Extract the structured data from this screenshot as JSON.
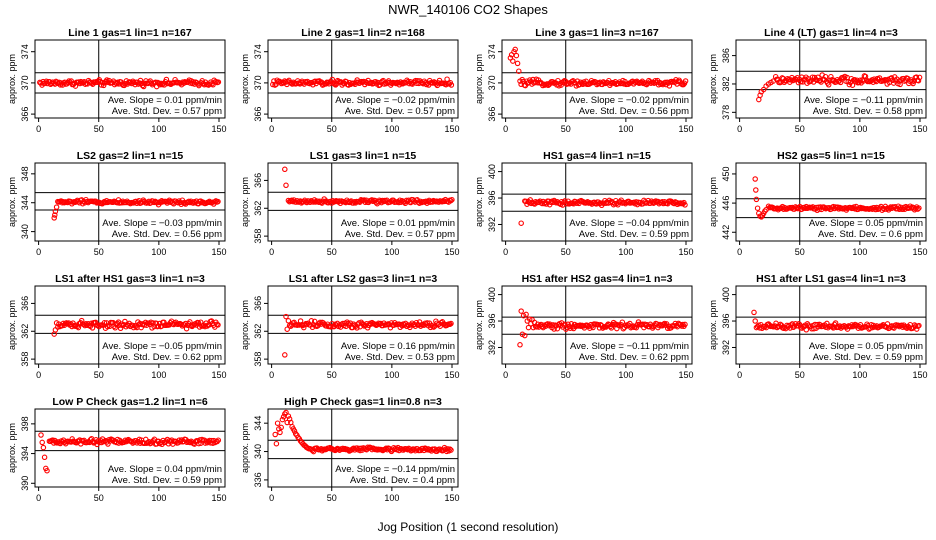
{
  "title": "NWR_140106  CO2 Shapes",
  "xlabel": "Jog Position (1 second resolution)",
  "chart_data": [
    {
      "type": "scatter",
      "title": "Line 1 gas=1 lin=1 n=167",
      "ylabel": "approx. ppm",
      "xlim": [
        -3,
        155
      ],
      "ylim": [
        365.5,
        375.5
      ],
      "yticks": [
        366,
        370,
        374
      ],
      "xticks": [
        0,
        50,
        100,
        150
      ],
      "ref_lines": [
        368.7,
        371.3
      ],
      "vline": 50,
      "level": 370.0,
      "noise": 0.25,
      "x_start": 1,
      "x_end": 150,
      "early": [],
      "slope_text": "Ave. Slope = 0.01  ppm/min",
      "std_text": "Ave. Std. Dev. = 0.57  ppm"
    },
    {
      "type": "scatter",
      "title": "Line 2 gas=1 lin=2 n=168",
      "ylabel": "approx. ppm",
      "xlim": [
        -3,
        155
      ],
      "ylim": [
        365.5,
        375.5
      ],
      "yticks": [
        366,
        370,
        374
      ],
      "xticks": [
        0,
        50,
        100,
        150
      ],
      "ref_lines": [
        368.7,
        371.3
      ],
      "vline": 50,
      "level": 370.0,
      "noise": 0.25,
      "x_start": 1,
      "x_end": 150,
      "early": [],
      "slope_text": "Ave. Slope = −0.02  ppm/min",
      "std_text": "Ave. Std. Dev. = 0.57  ppm"
    },
    {
      "type": "scatter",
      "title": "Line 3 gas=1 lin=3 n=167",
      "ylabel": "approx. ppm",
      "xlim": [
        -3,
        155
      ],
      "ylim": [
        365.5,
        375.5
      ],
      "yticks": [
        366,
        370,
        374
      ],
      "xticks": [
        0,
        50,
        100,
        150
      ],
      "ref_lines": [
        368.7,
        371.3
      ],
      "vline": 50,
      "level": 370.0,
      "noise": 0.25,
      "x_start": 12,
      "x_end": 150,
      "early": [
        [
          4,
          373.2
        ],
        [
          5,
          373.6
        ],
        [
          6,
          372.8
        ],
        [
          7,
          374.0
        ],
        [
          8,
          374.3
        ],
        [
          9,
          373.5
        ],
        [
          10,
          372.5
        ],
        [
          11,
          371.5
        ]
      ],
      "slope_text": "Ave. Slope = −0.02  ppm/min",
      "std_text": "Ave. Std. Dev. = 0.56  ppm"
    },
    {
      "type": "scatter",
      "title": "Line 4 (LT) gas=1 lin=4 n=3",
      "ylabel": "approx. ppm",
      "xlim": [
        -3,
        155
      ],
      "ylim": [
        377.2,
        388.2
      ],
      "yticks": [
        378,
        382,
        386
      ],
      "xticks": [
        0,
        50,
        100,
        150
      ],
      "ref_lines": [
        381.2,
        383.8
      ],
      "vline": 50,
      "level": 382.5,
      "noise": 0.4,
      "x_start": 30,
      "x_end": 150,
      "early": [
        [
          16,
          379.8
        ],
        [
          17,
          380.4
        ],
        [
          18,
          380.9
        ],
        [
          20,
          381.2
        ],
        [
          22,
          381.7
        ],
        [
          24,
          382.0
        ],
        [
          26,
          382.2
        ],
        [
          28,
          382.4
        ]
      ],
      "slope_text": "Ave. Slope = −0.11  ppm/min",
      "std_text": "Ave. Std. Dev. = 0.58  ppm"
    },
    {
      "type": "scatter",
      "title": "LS2 gas=2 lin=1 n=15",
      "ylabel": "approx. ppm",
      "xlim": [
        -3,
        155
      ],
      "ylim": [
        338.7,
        349.5
      ],
      "yticks": [
        340,
        344,
        348
      ],
      "xticks": [
        0,
        50,
        100,
        150
      ],
      "ref_lines": [
        343.0,
        345.4
      ],
      "vline": 50,
      "level": 344.1,
      "noise": 0.2,
      "x_start": 16,
      "x_end": 150,
      "early": [
        [
          13,
          341.9
        ],
        [
          13.5,
          342.3
        ],
        [
          14,
          342.8
        ],
        [
          15,
          343.4
        ]
      ],
      "slope_text": "Ave. Slope = −0.03  ppm/min",
      "std_text": "Ave. Std. Dev. = 0.56  ppm"
    },
    {
      "type": "scatter",
      "title": "LS1 gas=3 lin=1 n=15",
      "ylabel": "approx. ppm",
      "xlim": [
        -3,
        155
      ],
      "ylim": [
        357.3,
        368.5
      ],
      "yticks": [
        358,
        362,
        366
      ],
      "xticks": [
        0,
        50,
        100,
        150
      ],
      "ref_lines": [
        361.7,
        364.3
      ],
      "vline": 50,
      "level": 363.0,
      "noise": 0.2,
      "x_start": 14,
      "x_end": 150,
      "early": [
        [
          11,
          367.6
        ],
        [
          12,
          365.3
        ]
      ],
      "slope_text": "Ave. Slope = 0.01  ppm/min",
      "std_text": "Ave. Std. Dev. = 0.57  ppm"
    },
    {
      "type": "scatter",
      "title": "HS1 gas=4 lin=1 n=15",
      "ylabel": "approx. ppm",
      "xlim": [
        -3,
        155
      ],
      "ylim": [
        389.5,
        401.3
      ],
      "yticks": [
        392,
        396,
        400
      ],
      "xticks": [
        0,
        50,
        100,
        150
      ],
      "ref_lines": [
        394.0,
        396.6
      ],
      "vline": 50,
      "level": 395.3,
      "noise": 0.25,
      "x_start": 16,
      "x_end": 150,
      "early": [
        [
          13,
          392.2
        ]
      ],
      "slope_text": "Ave. Slope = −0.04  ppm/min",
      "std_text": "Ave. Std. Dev. = 0.59  ppm"
    },
    {
      "type": "scatter",
      "title": "HS2 gas=5 lin=1 n=15",
      "ylabel": "approx. ppm",
      "xlim": [
        -3,
        155
      ],
      "ylim": [
        440.8,
        451.5
      ],
      "yticks": [
        442,
        446,
        450
      ],
      "xticks": [
        0,
        50,
        100,
        150
      ],
      "ref_lines": [
        444.0,
        446.6
      ],
      "vline": 50,
      "level": 445.3,
      "noise": 0.2,
      "x_start": 24,
      "x_end": 150,
      "early": [
        [
          13,
          449.3
        ],
        [
          13.5,
          447.8
        ],
        [
          14,
          446.5
        ],
        [
          15,
          445.3
        ],
        [
          16,
          444.6
        ],
        [
          17,
          444.2
        ],
        [
          18,
          444.1
        ],
        [
          19,
          444.3
        ],
        [
          20,
          444.6
        ],
        [
          21,
          444.9
        ],
        [
          22,
          445.1
        ]
      ],
      "slope_text": "Ave. Slope = 0.05  ppm/min",
      "std_text": "Ave. Std. Dev. = 0.6  ppm"
    },
    {
      "type": "scatter",
      "title": "LS1 after HS1 gas=3 lin=1 n=3",
      "ylabel": "approx. ppm",
      "xlim": [
        -3,
        155
      ],
      "ylim": [
        357.3,
        368.5
      ],
      "yticks": [
        358,
        362,
        366
      ],
      "xticks": [
        0,
        50,
        100,
        150
      ],
      "ref_lines": [
        361.7,
        364.3
      ],
      "vline": 50,
      "level": 363.0,
      "noise": 0.35,
      "x_start": 16,
      "x_end": 150,
      "early": [
        [
          13,
          361.6
        ],
        [
          14,
          362.2
        ],
        [
          15,
          363.2
        ]
      ],
      "slope_text": "Ave. Slope = −0.05  ppm/min",
      "std_text": "Ave. Std. Dev. = 0.62  ppm"
    },
    {
      "type": "scatter",
      "title": "LS1 after LS2 gas=3 lin=1 n=3",
      "ylabel": "approx. ppm",
      "xlim": [
        -3,
        155
      ],
      "ylim": [
        357.3,
        368.5
      ],
      "yticks": [
        358,
        362,
        366
      ],
      "xticks": [
        0,
        50,
        100,
        150
      ],
      "ref_lines": [
        361.7,
        364.3
      ],
      "vline": 50,
      "level": 363.0,
      "noise": 0.35,
      "x_start": 16,
      "x_end": 150,
      "early": [
        [
          11,
          358.6
        ],
        [
          12,
          364.1
        ],
        [
          13,
          362.3
        ],
        [
          14,
          363.5
        ],
        [
          15,
          362.8
        ]
      ],
      "slope_text": "Ave. Slope = 0.16  ppm/min",
      "std_text": "Ave. Std. Dev. = 0.53  ppm"
    },
    {
      "type": "scatter",
      "title": "HS1 after HS2 gas=4 lin=1 n=3",
      "ylabel": "approx. ppm",
      "xlim": [
        -3,
        155
      ],
      "ylim": [
        389.5,
        401.3
      ],
      "yticks": [
        392,
        396,
        400
      ],
      "xticks": [
        0,
        50,
        100,
        150
      ],
      "ref_lines": [
        394.0,
        396.6
      ],
      "vline": 50,
      "level": 395.3,
      "noise": 0.35,
      "x_start": 25,
      "x_end": 150,
      "early": [
        [
          12,
          392.4
        ],
        [
          13,
          397.5
        ],
        [
          14,
          394.0
        ],
        [
          15,
          396.8
        ],
        [
          16,
          393.8
        ],
        [
          17,
          397.0
        ],
        [
          18,
          396.0
        ],
        [
          19,
          395.0
        ],
        [
          20,
          396.3
        ],
        [
          21,
          395.6
        ],
        [
          22,
          396.2
        ],
        [
          23,
          395.0
        ],
        [
          24,
          395.8
        ]
      ],
      "slope_text": "Ave. Slope = −0.11  ppm/min",
      "std_text": "Ave. Std. Dev. = 0.62  ppm"
    },
    {
      "type": "scatter",
      "title": "HS1 after LS1 gas=4 lin=1 n=3",
      "ylabel": "approx. ppm",
      "xlim": [
        -3,
        155
      ],
      "ylim": [
        389.5,
        401.3
      ],
      "yticks": [
        392,
        396,
        400
      ],
      "xticks": [
        0,
        50,
        100,
        150
      ],
      "ref_lines": [
        394.0,
        396.6
      ],
      "vline": 50,
      "level": 395.2,
      "noise": 0.3,
      "x_start": 15,
      "x_end": 150,
      "early": [
        [
          12,
          397.3
        ],
        [
          13,
          396.0
        ],
        [
          14,
          395.0
        ]
      ],
      "slope_text": "Ave. Slope = 0.05  ppm/min",
      "std_text": "Ave. Std. Dev. = 0.59  ppm"
    },
    {
      "type": "scatter",
      "title": "Low P Check gas=1.2 lin=1 n=6",
      "ylabel": "approx. ppm",
      "xlim": [
        -3,
        155
      ],
      "ylim": [
        389.5,
        400.0
      ],
      "yticks": [
        390,
        394,
        398
      ],
      "xticks": [
        0,
        50,
        100,
        150
      ],
      "ref_lines": [
        394.4,
        397.0
      ],
      "vline": 50,
      "level": 395.6,
      "noise": 0.25,
      "x_start": 9,
      "x_end": 150,
      "early": [
        [
          2,
          396.5
        ],
        [
          3,
          395.5
        ],
        [
          4,
          394.8
        ],
        [
          5,
          393.5
        ],
        [
          6,
          392.0
        ],
        [
          7,
          391.7
        ]
      ],
      "slope_text": "Ave. Slope = 0.04  ppm/min",
      "std_text": "Ave. Std. Dev. = 0.59  ppm"
    },
    {
      "type": "scatter",
      "title": "High P Check gas=1 lin=0.8 n=3",
      "ylabel": "approx. ppm",
      "xlim": [
        -3,
        155
      ],
      "ylim": [
        335.0,
        346.0
      ],
      "yticks": [
        336,
        340,
        344
      ],
      "xticks": [
        0,
        50,
        100,
        150
      ],
      "ref_lines": [
        339.0,
        341.6
      ],
      "vline": 50,
      "level": 340.3,
      "noise": 0.2,
      "x_start": 34,
      "x_end": 150,
      "early": [
        [
          3,
          342.4
        ],
        [
          4,
          341.1
        ],
        [
          5,
          344.0
        ],
        [
          6,
          343.2
        ],
        [
          7,
          342.7
        ],
        [
          8,
          343.4
        ],
        [
          9,
          344.5
        ],
        [
          10,
          344.9
        ],
        [
          11,
          345.3
        ],
        [
          12,
          345.5
        ],
        [
          13,
          344.1
        ],
        [
          14,
          345.0
        ],
        [
          15,
          344.6
        ],
        [
          16,
          344.1
        ],
        [
          17,
          343.5
        ],
        [
          18,
          343.2
        ],
        [
          19,
          342.9
        ],
        [
          20,
          342.5
        ],
        [
          21,
          342.3
        ],
        [
          22,
          342.0
        ],
        [
          23,
          341.8
        ],
        [
          24,
          341.5
        ],
        [
          25,
          341.3
        ],
        [
          26,
          341.1
        ],
        [
          27,
          340.9
        ],
        [
          28,
          340.8
        ],
        [
          29,
          340.6
        ],
        [
          30,
          340.5
        ],
        [
          31,
          340.4
        ],
        [
          32,
          340.4
        ],
        [
          33,
          340.3
        ]
      ],
      "slope_text": "Ave. Slope = −0.14  ppm/min",
      "std_text": "Ave. Std. Dev. = 0.4  ppm"
    }
  ]
}
